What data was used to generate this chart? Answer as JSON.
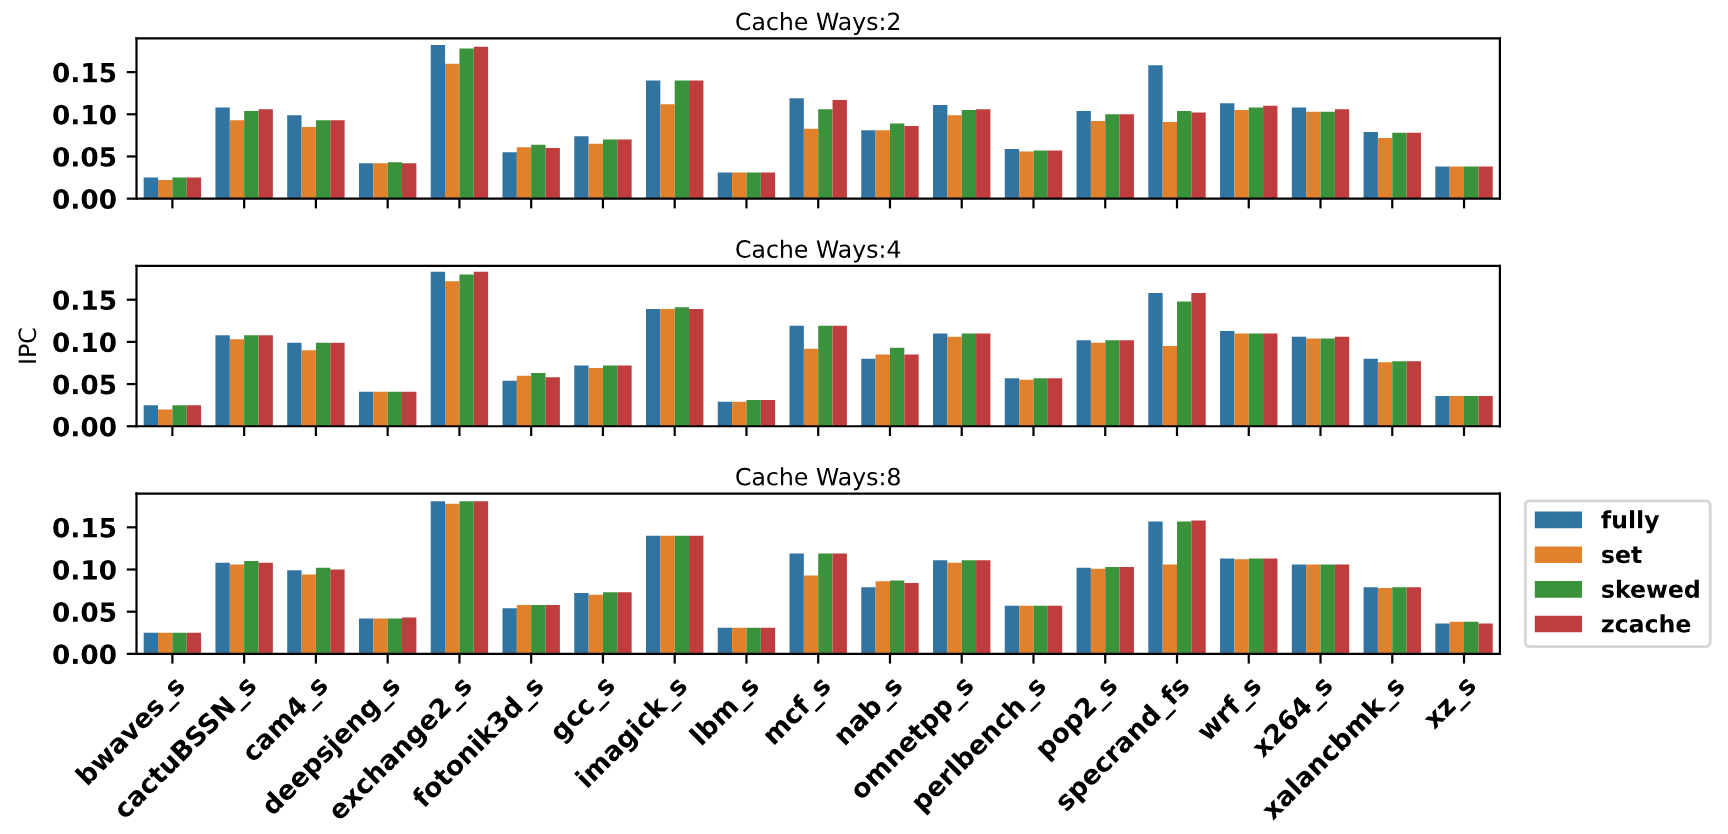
{
  "chart_data": [
    {
      "type": "bar",
      "title": "Cache Ways:2",
      "categories": [
        null,
        null,
        null,
        null,
        null,
        null,
        null,
        null,
        null,
        null,
        null,
        null,
        null,
        null,
        null,
        null,
        null,
        null,
        null
      ],
      "series": [
        {
          "color": "#3274a1",
          "values": [
            0.025,
            0.108,
            0.099,
            0.042,
            0.182,
            0.055,
            0.074,
            0.14,
            0.031,
            0.119,
            0.081,
            0.111,
            0.059,
            0.104,
            0.158,
            0.113,
            0.108,
            0.079,
            0.038
          ]
        },
        {
          "color": "#e1812c",
          "values": [
            0.022,
            0.093,
            0.085,
            0.042,
            0.16,
            0.061,
            0.065,
            0.112,
            0.031,
            0.083,
            0.081,
            0.099,
            0.056,
            0.092,
            0.091,
            0.105,
            0.103,
            0.072,
            0.038
          ]
        },
        {
          "color": "#3a923a",
          "values": [
            0.025,
            0.104,
            0.093,
            0.043,
            0.178,
            0.064,
            0.07,
            0.14,
            0.031,
            0.106,
            0.089,
            0.105,
            0.057,
            0.1,
            0.104,
            0.108,
            0.103,
            0.078,
            0.038
          ]
        },
        {
          "color": "#c03d3e",
          "values": [
            0.025,
            0.106,
            0.093,
            0.042,
            0.18,
            0.06,
            0.07,
            0.14,
            0.031,
            0.117,
            0.086,
            0.106,
            0.057,
            0.1,
            0.102,
            0.11,
            0.106,
            0.078,
            0.038
          ]
        }
      ],
      "ylim": [
        0,
        0.19
      ],
      "yticks": [
        {
          "value": 0,
          "label": "0.00"
        },
        {
          "value": 0.05,
          "label": "0.05"
        },
        {
          "value": 0.1,
          "label": "0.10"
        },
        {
          "value": 0.15,
          "label": "0.15"
        }
      ],
      "tick_labels": "y",
      "legend": false,
      "grid": false
    },
    {
      "type": "bar",
      "title": "Cache Ways:4",
      "ylabel": "IPC",
      "categories": [
        null,
        null,
        null,
        null,
        null,
        null,
        null,
        null,
        null,
        null,
        null,
        null,
        null,
        null,
        null,
        null,
        null,
        null,
        null
      ],
      "series": [
        {
          "color": "#3274a1",
          "values": [
            0.025,
            0.108,
            0.099,
            0.041,
            0.183,
            0.054,
            0.072,
            0.139,
            0.029,
            0.119,
            0.08,
            0.11,
            0.057,
            0.102,
            0.158,
            0.113,
            0.106,
            0.08,
            0.036
          ]
        },
        {
          "color": "#e1812c",
          "values": [
            0.02,
            0.103,
            0.09,
            0.041,
            0.172,
            0.06,
            0.069,
            0.139,
            0.029,
            0.092,
            0.085,
            0.106,
            0.055,
            0.099,
            0.095,
            0.11,
            0.104,
            0.076,
            0.036
          ]
        },
        {
          "color": "#3a923a",
          "values": [
            0.025,
            0.108,
            0.099,
            0.041,
            0.18,
            0.063,
            0.072,
            0.141,
            0.031,
            0.119,
            0.093,
            0.11,
            0.057,
            0.102,
            0.148,
            0.11,
            0.104,
            0.077,
            0.036
          ]
        },
        {
          "color": "#c03d3e",
          "values": [
            0.025,
            0.108,
            0.099,
            0.041,
            0.183,
            0.058,
            0.072,
            0.139,
            0.031,
            0.119,
            0.085,
            0.11,
            0.057,
            0.102,
            0.158,
            0.11,
            0.106,
            0.077,
            0.036
          ]
        }
      ],
      "ylim": [
        0,
        0.19
      ],
      "yticks": [
        {
          "value": 0,
          "label": "0.00"
        },
        {
          "value": 0.05,
          "label": "0.05"
        },
        {
          "value": 0.1,
          "label": "0.10"
        },
        {
          "value": 0.15,
          "label": "0.15"
        }
      ],
      "tick_labels": "y",
      "legend": false,
      "grid": false
    },
    {
      "type": "bar",
      "title": "Cache Ways:8",
      "categories": [
        "bwaves_s",
        "cactuBSSN_s",
        "cam4_s",
        "deepsjeng_s",
        "exchange2_s",
        "fotonik3d_s",
        "gcc_s",
        "imagick_s",
        "lbm_s",
        "mcf_s",
        "nab_s",
        "omnetpp_s",
        "perlbench_s",
        "pop2_s",
        "specrand_fs",
        "wrf_s",
        "x264_s",
        "xalancbmk_s",
        "xz_s"
      ],
      "series": [
        {
          "name": "fully",
          "color": "#3274a1",
          "values": [
            0.025,
            0.108,
            0.099,
            0.042,
            0.181,
            0.054,
            0.072,
            0.14,
            0.031,
            0.119,
            0.079,
            0.111,
            0.057,
            0.102,
            0.157,
            0.113,
            0.106,
            0.079,
            0.036
          ]
        },
        {
          "name": "set",
          "color": "#e1812c",
          "values": [
            0.025,
            0.106,
            0.094,
            0.042,
            0.178,
            0.058,
            0.07,
            0.14,
            0.031,
            0.093,
            0.086,
            0.108,
            0.057,
            0.101,
            0.106,
            0.112,
            0.106,
            0.078,
            0.038
          ]
        },
        {
          "name": "skewed",
          "color": "#3a923a",
          "values": [
            0.025,
            0.11,
            0.102,
            0.042,
            0.181,
            0.058,
            0.073,
            0.14,
            0.031,
            0.119,
            0.087,
            0.111,
            0.057,
            0.103,
            0.157,
            0.113,
            0.106,
            0.079,
            0.038
          ]
        },
        {
          "name": "zcache",
          "color": "#c03d3e",
          "values": [
            0.025,
            0.108,
            0.1,
            0.043,
            0.181,
            0.058,
            0.073,
            0.14,
            0.031,
            0.119,
            0.084,
            0.111,
            0.057,
            0.103,
            0.158,
            0.113,
            0.106,
            0.079,
            0.036
          ]
        }
      ],
      "ylim": [
        0,
        0.19
      ],
      "yticks": [
        {
          "value": 0,
          "label": "0.00"
        },
        {
          "value": 0.05,
          "label": "0.05"
        },
        {
          "value": 0.1,
          "label": "0.10"
        },
        {
          "value": 0.15,
          "label": "0.15"
        }
      ],
      "legend": "right",
      "grid": false
    }
  ]
}
